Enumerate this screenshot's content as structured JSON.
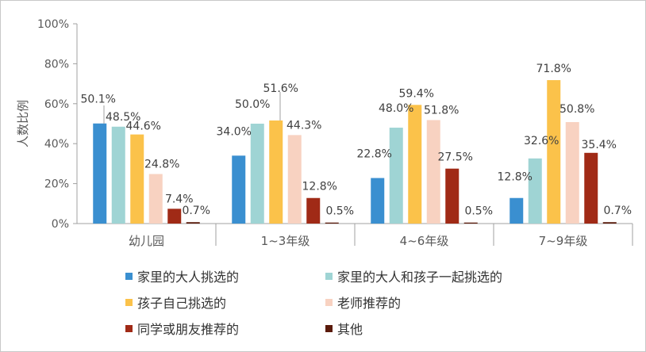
{
  "chart_data": {
    "type": "bar",
    "ylabel": "人数比例",
    "ylim": [
      0,
      100
    ],
    "yticks": [
      "0%",
      "20%",
      "40%",
      "60%",
      "80%",
      "100%"
    ],
    "categories": [
      "幼儿园",
      "1~3年级",
      "4~6年级",
      "7~9年级"
    ],
    "series": [
      {
        "name": "家里的大人挑选的",
        "color": "#3a8fd0",
        "values": [
          50.1,
          34.0,
          22.8,
          12.8
        ],
        "labels": [
          "50.1%",
          "34.0%",
          "22.8%",
          "12.8%"
        ]
      },
      {
        "name": "家里的大人和孩子一起挑选的",
        "color": "#9fd4d4",
        "values": [
          48.5,
          50.0,
          48.0,
          32.6
        ],
        "labels": [
          "48.5%",
          "50.0%",
          "48.0%",
          "32.6%"
        ]
      },
      {
        "name": "孩子自己挑选的",
        "color": "#fbc24a",
        "values": [
          44.6,
          51.6,
          59.4,
          71.8
        ],
        "labels": [
          "44.6%",
          "51.6%",
          "59.4%",
          "71.8%"
        ]
      },
      {
        "name": "老师推荐的",
        "color": "#f8d2c1",
        "values": [
          24.8,
          44.3,
          51.8,
          50.8
        ],
        "labels": [
          "24.8%",
          "44.3%",
          "51.8%",
          "50.8%"
        ]
      },
      {
        "name": "同学或朋友推荐的",
        "color": "#a02a16",
        "values": [
          7.4,
          12.8,
          27.5,
          35.4
        ],
        "labels": [
          "7.4%",
          "12.8%",
          "27.5%",
          "35.4%"
        ]
      },
      {
        "name": "其他",
        "color": "#5a1a0a",
        "values": [
          0.7,
          0.5,
          0.5,
          0.7
        ],
        "labels": [
          "0.7%",
          "0.5%",
          "0.5%",
          "0.7%"
        ]
      }
    ],
    "grid": false,
    "legend": "bottom"
  }
}
